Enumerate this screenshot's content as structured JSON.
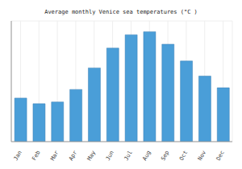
{
  "chart_data": {
    "type": "bar",
    "title": "Average monthly Venice sea temperatures (°C )",
    "categories": [
      "Jan",
      "Feb",
      "Mar",
      "Apr",
      "May",
      "Jun",
      "Jul",
      "Aug",
      "Sep",
      "Oct",
      "Nov",
      "Dec"
    ],
    "values": [
      10.1,
      8.8,
      9.2,
      12.1,
      17.1,
      21.7,
      24.8,
      25.5,
      22.6,
      18.7,
      15.2,
      12.5
    ],
    "color": "#4a9ed8",
    "ylim": [
      0,
      28
    ],
    "yticks": [
      0,
      5,
      10,
      15,
      20,
      25
    ],
    "grid": true,
    "tick_labels": "x"
  }
}
